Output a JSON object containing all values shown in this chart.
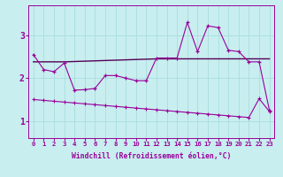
{
  "xlabel": "Windchill (Refroidissement éolien,°C)",
  "background_color": "#c8eef0",
  "grid_color": "#aadddd",
  "line_color": "#990099",
  "line_color2": "#550055",
  "xlim": [
    -0.5,
    23.5
  ],
  "ylim": [
    0.6,
    3.7
  ],
  "yticks": [
    1,
    2,
    3
  ],
  "xticks": [
    0,
    1,
    2,
    3,
    4,
    5,
    6,
    7,
    8,
    9,
    10,
    11,
    12,
    13,
    14,
    15,
    16,
    17,
    18,
    19,
    20,
    21,
    22,
    23
  ],
  "series1_x": [
    0,
    1,
    2,
    3,
    4,
    5,
    6,
    7,
    8,
    9,
    10,
    11,
    12,
    13,
    14,
    15,
    16,
    17,
    18,
    19,
    20,
    21,
    22,
    23
  ],
  "series1_y": [
    2.55,
    2.2,
    2.15,
    2.35,
    1.72,
    1.73,
    1.76,
    2.06,
    2.06,
    2.0,
    1.94,
    1.94,
    2.47,
    2.47,
    2.47,
    3.3,
    2.62,
    3.22,
    3.18,
    2.65,
    2.62,
    2.38,
    2.38,
    1.25
  ],
  "series2_x": [
    0,
    3,
    12,
    20,
    22,
    23
  ],
  "series2_y": [
    2.38,
    2.38,
    2.45,
    2.45,
    2.45,
    2.45
  ],
  "series3_x": [
    0,
    1,
    2,
    3,
    4,
    5,
    6,
    7,
    8,
    9,
    10,
    11,
    12,
    13,
    14,
    15,
    16,
    17,
    18,
    19,
    20,
    21,
    22,
    23
  ],
  "series3_y": [
    1.5,
    1.48,
    1.46,
    1.44,
    1.42,
    1.4,
    1.38,
    1.36,
    1.34,
    1.32,
    1.3,
    1.28,
    1.26,
    1.24,
    1.22,
    1.2,
    1.18,
    1.16,
    1.14,
    1.12,
    1.1,
    1.08,
    1.52,
    1.22
  ]
}
